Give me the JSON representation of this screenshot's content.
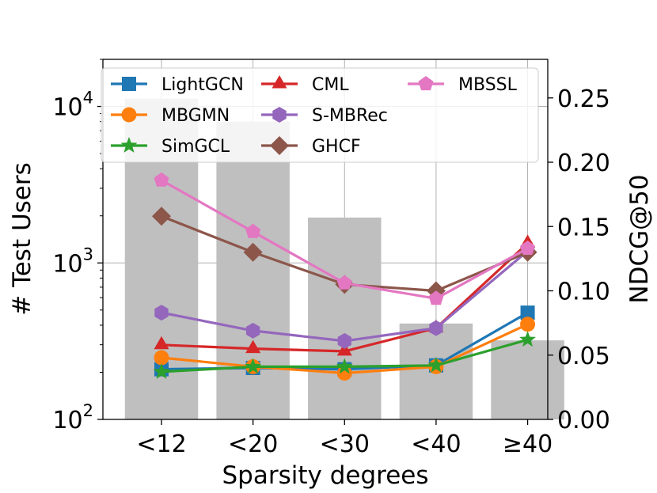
{
  "chart_data": {
    "type": "bar+line",
    "title": "",
    "xlabel": "Sparsity degrees",
    "ylabel_left": "# Test Users",
    "ylabel_right": "NDCG@50",
    "categories": [
      "<12",
      "<20",
      "<30",
      "<40",
      "≥40"
    ],
    "bars": {
      "name": "# Test Users",
      "scale": "log",
      "values": [
        11200,
        8000,
        1950,
        410,
        320
      ],
      "color": "#bfbfbf"
    },
    "left_axis": {
      "scale": "log",
      "ylim": [
        100,
        20000
      ],
      "ticks": [
        {
          "value": 100,
          "base": "10",
          "exp": "2"
        },
        {
          "value": 1000,
          "base": "10",
          "exp": "3"
        },
        {
          "value": 10000,
          "base": "10",
          "exp": "4"
        }
      ]
    },
    "right_axis": {
      "ylim": [
        0,
        0.28
      ],
      "ticks": [
        0.0,
        0.05,
        0.1,
        0.15,
        0.2,
        0.25
      ],
      "tick_labels": [
        "0.00",
        "0.05",
        "0.10",
        "0.15",
        "0.20",
        "0.25"
      ]
    },
    "series": [
      {
        "name": "LightGCN",
        "values": [
          0.039,
          0.04,
          0.039,
          0.042,
          0.083
        ],
        "color": "#1f77b4",
        "marker": "square"
      },
      {
        "name": "MBGMN",
        "values": [
          0.048,
          0.041,
          0.036,
          0.041,
          0.074
        ],
        "color": "#ff7f0e",
        "marker": "circle"
      },
      {
        "name": "SimGCL",
        "values": [
          0.037,
          0.041,
          0.041,
          0.042,
          0.062
        ],
        "color": "#2ca02c",
        "marker": "star"
      },
      {
        "name": "CML",
        "values": [
          0.058,
          0.055,
          0.053,
          0.071,
          0.137
        ],
        "color": "#d62728",
        "marker": "triangle"
      },
      {
        "name": "S-MBRec",
        "values": [
          0.083,
          0.069,
          0.061,
          0.071,
          0.131
        ],
        "color": "#9467bd",
        "marker": "hexagon"
      },
      {
        "name": "GHCF",
        "values": [
          0.158,
          0.13,
          0.105,
          0.1,
          0.13
        ],
        "color": "#8c564b",
        "marker": "diamond"
      },
      {
        "name": "MBSSL",
        "values": [
          0.186,
          0.146,
          0.106,
          0.094,
          0.133
        ],
        "color": "#e377c2",
        "marker": "pentagon"
      }
    ],
    "legend_location": "top",
    "grid": true
  }
}
